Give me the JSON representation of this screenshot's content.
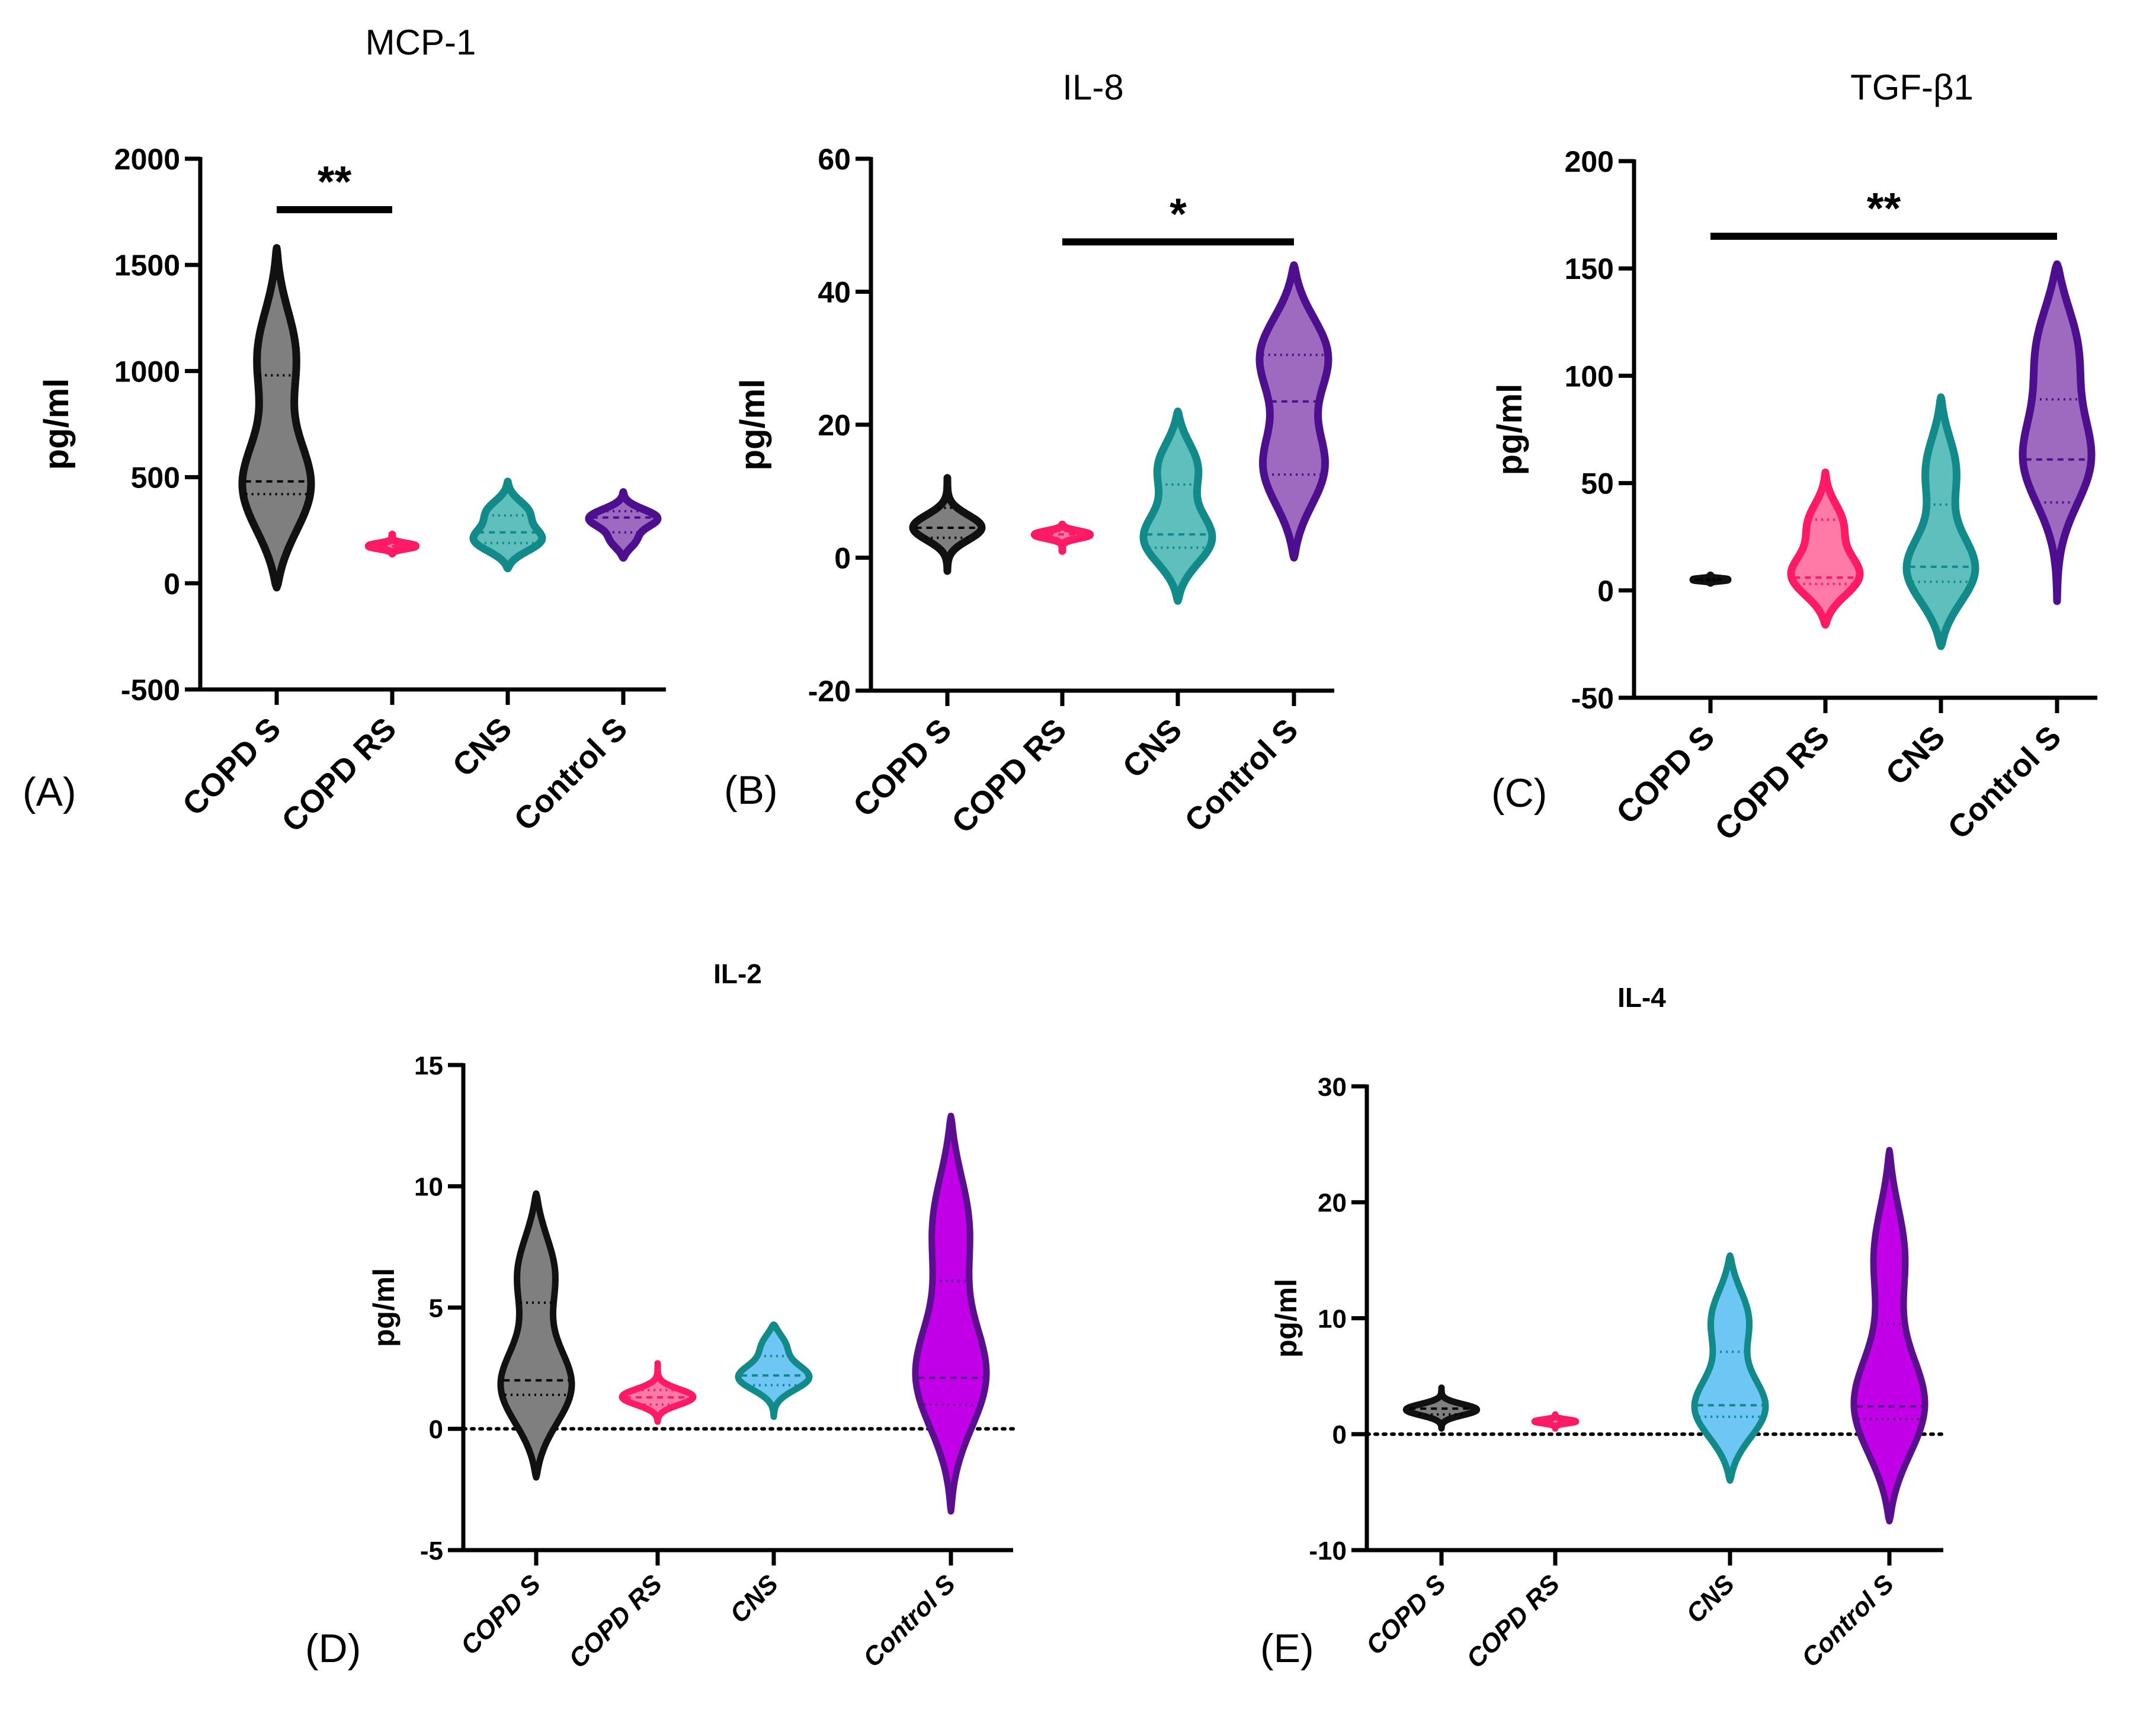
{
  "figure": {
    "panels": [
      {
        "id": "A",
        "label": "(A)"
      },
      {
        "id": "B",
        "label": "(B)"
      },
      {
        "id": "C",
        "label": "(C)"
      },
      {
        "id": "D",
        "label": "(D)"
      },
      {
        "id": "E",
        "label": "(E)"
      }
    ]
  },
  "chart_data": [
    {
      "type": "violin",
      "panel": "(A)",
      "title": "MCP-1",
      "ylabel": "pg/ml",
      "ylim": [
        -500,
        2000
      ],
      "yticks": [
        -500,
        0,
        500,
        1000,
        1500,
        2000
      ],
      "categories": [
        "COPD S",
        "COPD RS",
        "CNS",
        "Control S"
      ],
      "colors": {
        "fill": [
          "#7f7f7f",
          "#ff7aa6",
          "#5ebfbd",
          "#9d6ac0"
        ],
        "stroke": [
          "#111111",
          "#ff1a66",
          "#138a8a",
          "#4d0f8e"
        ]
      },
      "series": [
        {
          "name": "COPD S",
          "min": -20,
          "max": 1580,
          "median": 480,
          "q1": 420,
          "q3": 980,
          "modes": [
            {
              "at": 430,
              "w": 1.0
            },
            {
              "at": 1100,
              "w": 0.55
            }
          ]
        },
        {
          "name": "COPD RS",
          "min": 140,
          "max": 230,
          "median": 175,
          "q1": 160,
          "q3": 195,
          "modes": [
            {
              "at": 175,
              "w": 1.0
            }
          ]
        },
        {
          "name": "CNS",
          "min": 70,
          "max": 480,
          "median": 240,
          "q1": 190,
          "q3": 320,
          "modes": [
            {
              "at": 200,
              "w": 1.0
            },
            {
              "at": 340,
              "w": 0.6
            }
          ]
        },
        {
          "name": "Control S",
          "min": 120,
          "max": 430,
          "median": 310,
          "q1": 240,
          "q3": 340,
          "modes": [
            {
              "at": 310,
              "w": 1.0
            },
            {
              "at": 200,
              "w": 0.4
            }
          ]
        }
      ],
      "significance": {
        "from": "COPD S",
        "to": "COPD RS",
        "y": 1760,
        "label": "**"
      }
    },
    {
      "type": "violin",
      "panel": "(B)",
      "title": "IL-8",
      "ylabel": "pg/ml",
      "ylim": [
        -20,
        60
      ],
      "yticks": [
        -20,
        0,
        20,
        40,
        60
      ],
      "categories": [
        "COPD S",
        "COPD RS",
        "CNS",
        "Control S"
      ],
      "colors": {
        "fill": [
          "#7f7f7f",
          "#ff7aa6",
          "#5ebfbd",
          "#9d6ac0"
        ],
        "stroke": [
          "#111111",
          "#ff1a66",
          "#138a8a",
          "#4d0f8e"
        ]
      },
      "series": [
        {
          "name": "COPD S",
          "min": -2,
          "max": 12,
          "median": 4.5,
          "q1": 3,
          "q3": 7.5,
          "modes": [
            {
              "at": 4.5,
              "w": 1.0
            }
          ]
        },
        {
          "name": "COPD RS",
          "min": 1,
          "max": 5,
          "median": 3.5,
          "q1": 2.5,
          "q3": 4,
          "modes": [
            {
              "at": 3.5,
              "w": 1.0
            }
          ]
        },
        {
          "name": "CNS",
          "min": -6.5,
          "max": 22,
          "median": 3.5,
          "q1": 1.5,
          "q3": 11,
          "modes": [
            {
              "at": 2.5,
              "w": 1.0
            },
            {
              "at": 14,
              "w": 0.6
            }
          ]
        },
        {
          "name": "Control S",
          "min": 0,
          "max": 44,
          "median": 23.5,
          "q1": 12.5,
          "q3": 30.5,
          "modes": [
            {
              "at": 13,
              "w": 0.9
            },
            {
              "at": 31,
              "w": 1.0
            }
          ]
        }
      ],
      "significance": {
        "from": "COPD RS",
        "to": "Control S",
        "y": 47.5,
        "label": "*"
      }
    },
    {
      "type": "violin",
      "panel": "(C)",
      "title": "TGF-β1",
      "ylabel": "pg/ml",
      "ylim": [
        -50,
        200
      ],
      "yticks": [
        -50,
        0,
        50,
        100,
        150,
        200
      ],
      "categories": [
        "COPD S",
        "COPD RS",
        "CNS",
        "Control S"
      ],
      "colors": {
        "fill": [
          "#7f7f7f",
          "#ff7aa6",
          "#5ebfbd",
          "#9d6ac0"
        ],
        "stroke": [
          "#111111",
          "#ff1a66",
          "#138a8a",
          "#4d0f8e"
        ]
      },
      "series": [
        {
          "name": "COPD S",
          "min": 3.5,
          "max": 7,
          "median": 5,
          "q1": 4.5,
          "q3": 5.5,
          "modes": [
            {
              "at": 5,
              "w": 1.0
            }
          ]
        },
        {
          "name": "COPD RS",
          "min": -16,
          "max": 55,
          "median": 6,
          "q1": 3,
          "q3": 33,
          "modes": [
            {
              "at": 6,
              "w": 1.0
            },
            {
              "at": 32,
              "w": 0.5
            }
          ]
        },
        {
          "name": "CNS",
          "min": -26,
          "max": 90,
          "median": 11,
          "q1": 4,
          "q3": 40,
          "modes": [
            {
              "at": 8,
              "w": 1.0
            },
            {
              "at": 58,
              "w": 0.45
            }
          ]
        },
        {
          "name": "Control S",
          "min": -5,
          "max": 152,
          "median": 61,
          "q1": 41,
          "q3": 89,
          "modes": [
            {
              "at": 60,
              "w": 1.0
            },
            {
              "at": 115,
              "w": 0.7
            }
          ]
        }
      ],
      "significance": {
        "from": "COPD S",
        "to": "Control S",
        "y": 165,
        "label": "**"
      }
    },
    {
      "type": "violin",
      "panel": "(D)",
      "title": "IL-2",
      "ylabel": "pg/ml",
      "ylim": [
        -5,
        15
      ],
      "yticks": [
        -5,
        0,
        5,
        10,
        15
      ],
      "zero_line": true,
      "categories": [
        "COPD S",
        "COPD RS",
        "CNS",
        "Control S"
      ],
      "colors": {
        "fill": [
          "#7f7f7f",
          "#ff7aa6",
          "#6ec6f5",
          "#c200e8"
        ],
        "stroke": [
          "#111111",
          "#ff1a66",
          "#138a8a",
          "#5a0f8e"
        ]
      },
      "series": [
        {
          "name": "COPD S",
          "min": -2,
          "max": 9.7,
          "median": 2,
          "q1": 1.4,
          "q3": 5.2,
          "modes": [
            {
              "at": 1.6,
              "w": 1.0
            },
            {
              "at": 6.6,
              "w": 0.55
            }
          ]
        },
        {
          "name": "COPD RS",
          "min": 0.3,
          "max": 2.7,
          "median": 1.3,
          "q1": 1.0,
          "q3": 1.6,
          "modes": [
            {
              "at": 1.3,
              "w": 1.0
            }
          ]
        },
        {
          "name": "CNS",
          "min": 0.5,
          "max": 4.3,
          "median": 2.2,
          "q1": 1.8,
          "q3": 3.0,
          "modes": [
            {
              "at": 2.1,
              "w": 1.0
            },
            {
              "at": 3.5,
              "w": 0.4
            }
          ]
        },
        {
          "name": "Control S",
          "min": -3.4,
          "max": 12.9,
          "median": 2.1,
          "q1": 1.0,
          "q3": 6.1,
          "modes": [
            {
              "at": 2.0,
              "w": 1.0
            },
            {
              "at": 8.6,
              "w": 0.55
            }
          ]
        }
      ]
    },
    {
      "type": "violin",
      "panel": "(E)",
      "title": "IL-4",
      "ylabel": "pg/ml",
      "ylim": [
        -10,
        30
      ],
      "yticks": [
        -10,
        0,
        10,
        20,
        30
      ],
      "zero_line": true,
      "categories": [
        "COPD S",
        "COPD RS",
        "CNS",
        "Control S"
      ],
      "colors": {
        "fill": [
          "#7f7f7f",
          "#ff7aa6",
          "#6ec6f5",
          "#c200e8"
        ],
        "stroke": [
          "#111111",
          "#ff1a66",
          "#138a8a",
          "#5a0f8e"
        ]
      },
      "series": [
        {
          "name": "COPD S",
          "min": 0.5,
          "max": 4,
          "median": 2.2,
          "q1": 1.7,
          "q3": 3.2,
          "modes": [
            {
              "at": 2.1,
              "w": 1.0
            }
          ]
        },
        {
          "name": "COPD RS",
          "min": 0.5,
          "max": 1.7,
          "median": 1.1,
          "q1": 0.9,
          "q3": 1.3,
          "modes": [
            {
              "at": 1.1,
              "w": 1.0
            }
          ]
        },
        {
          "name": "CNS",
          "min": -4,
          "max": 15.4,
          "median": 2.5,
          "q1": 1.5,
          "q3": 7.1,
          "modes": [
            {
              "at": 2.0,
              "w": 1.0
            },
            {
              "at": 10.2,
              "w": 0.55
            }
          ]
        },
        {
          "name": "Control S",
          "min": -7.5,
          "max": 24.5,
          "median": 2.4,
          "q1": 1.3,
          "q3": 9.5,
          "modes": [
            {
              "at": 2.0,
              "w": 1.0
            },
            {
              "at": 16,
              "w": 0.45
            }
          ]
        }
      ]
    }
  ]
}
